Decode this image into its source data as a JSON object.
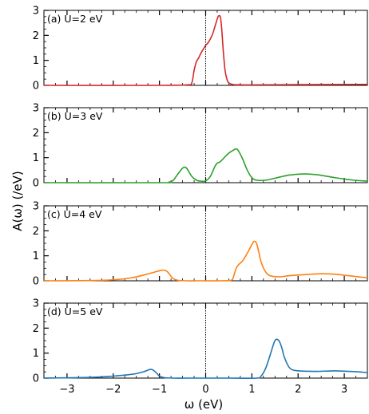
{
  "chart_data": {
    "type": "line",
    "xlabel": "ω (eV)",
    "ylabel": "A(ω) (/eV)",
    "xlim": [
      -3.5,
      3.5
    ],
    "ylim": [
      0,
      3
    ],
    "x_ticks": [
      -3,
      -2,
      -1,
      0,
      1,
      2,
      3
    ],
    "x_tick_labels": [
      "−3",
      "−2",
      "−1",
      "0",
      "1",
      "2",
      "3"
    ],
    "y_ticks": [
      0,
      1,
      2,
      3
    ],
    "y_tick_labels": [
      "0",
      "1",
      "2",
      "3"
    ],
    "vertical_reference_line": 0,
    "panels": [
      {
        "label": "(a) U=2 eV",
        "color": "#d62728",
        "x": [
          -3.5,
          -1.0,
          -0.4,
          -0.3,
          -0.25,
          -0.2,
          -0.15,
          -0.1,
          -0.05,
          0,
          0.05,
          0.1,
          0.15,
          0.2,
          0.25,
          0.28,
          0.32,
          0.35,
          0.38,
          0.42,
          0.46,
          0.5,
          0.6,
          0.8,
          1.0,
          2.0,
          3.5
        ],
        "y": [
          0,
          0,
          0.02,
          0.1,
          0.6,
          0.95,
          1.1,
          1.3,
          1.45,
          1.6,
          1.7,
          1.85,
          2.05,
          2.35,
          2.65,
          2.78,
          2.72,
          2.2,
          1.4,
          0.6,
          0.25,
          0.1,
          0.03,
          0.02,
          0.02,
          0.03,
          0.04
        ]
      },
      {
        "label": "(b) U=3 eV",
        "color": "#2ca02c",
        "x": [
          -3.5,
          -1.0,
          -0.8,
          -0.7,
          -0.6,
          -0.5,
          -0.45,
          -0.4,
          -0.3,
          -0.2,
          -0.1,
          0,
          0.1,
          0.2,
          0.25,
          0.3,
          0.35,
          0.4,
          0.5,
          0.6,
          0.65,
          0.7,
          0.8,
          0.9,
          1.0,
          1.1,
          1.3,
          1.5,
          1.8,
          2.1,
          2.4,
          2.8,
          3.2,
          3.5
        ],
        "y": [
          0,
          0,
          0.02,
          0.1,
          0.35,
          0.58,
          0.62,
          0.55,
          0.25,
          0.1,
          0.06,
          0.07,
          0.25,
          0.65,
          0.78,
          0.82,
          0.9,
          1.0,
          1.18,
          1.3,
          1.35,
          1.3,
          0.95,
          0.5,
          0.2,
          0.1,
          0.1,
          0.18,
          0.3,
          0.35,
          0.32,
          0.2,
          0.1,
          0.06
        ]
      },
      {
        "label": "(c) U=4 eV",
        "color": "#ff7f0e",
        "x": [
          -3.5,
          -2.5,
          -2.0,
          -1.6,
          -1.3,
          -1.1,
          -0.95,
          -0.88,
          -0.82,
          -0.75,
          -0.7,
          -0.6,
          -0.4,
          -0.2,
          0,
          0.3,
          0.55,
          0.6,
          0.65,
          0.7,
          0.8,
          0.9,
          1.0,
          1.05,
          1.1,
          1.15,
          1.2,
          1.3,
          1.4,
          1.6,
          1.8,
          2.1,
          2.5,
          2.8,
          3.1,
          3.5
        ],
        "y": [
          0,
          0.01,
          0.04,
          0.12,
          0.25,
          0.35,
          0.42,
          0.42,
          0.35,
          0.18,
          0.08,
          0.02,
          0,
          0,
          0,
          0,
          0.02,
          0.15,
          0.45,
          0.62,
          0.8,
          1.1,
          1.45,
          1.58,
          1.5,
          1.15,
          0.75,
          0.35,
          0.2,
          0.16,
          0.2,
          0.24,
          0.28,
          0.26,
          0.2,
          0.12
        ]
      },
      {
        "label": "(d) U=5 eV",
        "color": "#1f77b4",
        "x": [
          -3.5,
          -2.5,
          -2.0,
          -1.7,
          -1.5,
          -1.35,
          -1.25,
          -1.18,
          -1.12,
          -1.05,
          -1.0,
          -0.9,
          -0.7,
          -0.4,
          0,
          0.5,
          1.1,
          1.2,
          1.3,
          1.4,
          1.45,
          1.5,
          1.55,
          1.6,
          1.65,
          1.7,
          1.8,
          1.9,
          2.1,
          2.4,
          2.8,
          3.2,
          3.5
        ],
        "y": [
          0,
          0.03,
          0.08,
          0.13,
          0.18,
          0.25,
          0.32,
          0.35,
          0.3,
          0.18,
          0.08,
          0.02,
          0,
          0,
          0,
          0,
          0,
          0.08,
          0.4,
          0.95,
          1.25,
          1.5,
          1.55,
          1.45,
          1.2,
          0.85,
          0.45,
          0.32,
          0.28,
          0.27,
          0.29,
          0.26,
          0.22
        ]
      }
    ]
  }
}
